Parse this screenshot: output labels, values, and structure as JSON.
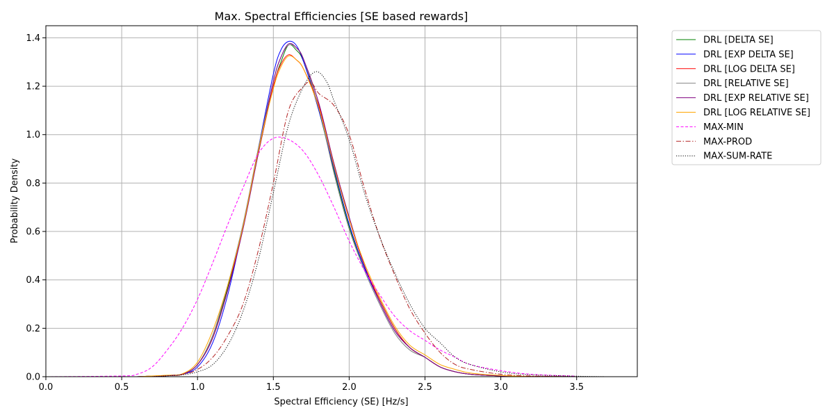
{
  "chart_data": {
    "type": "line",
    "title": "Max. Spectral Efficiencies [SE based rewards]",
    "xlabel": "Spectral Efficiency (SE) [Hz/s]",
    "ylabel": "Probability Density",
    "xlim": [
      0.0,
      3.9
    ],
    "ylim": [
      0.0,
      1.45
    ],
    "xticks": [
      0.0,
      0.5,
      1.0,
      1.5,
      2.0,
      2.5,
      3.0,
      3.5
    ],
    "xtick_labels": [
      "0.0",
      "0.5",
      "1.0",
      "1.5",
      "2.0",
      "2.5",
      "3.0",
      "3.5"
    ],
    "yticks": [
      0.0,
      0.2,
      0.4,
      0.6,
      0.8,
      1.0,
      1.2,
      1.4
    ],
    "ytick_labels": [
      "0.0",
      "0.2",
      "0.4",
      "0.6",
      "0.8",
      "1.0",
      "1.2",
      "1.4"
    ],
    "grid": true,
    "legend_position": "outside-right-top",
    "series": [
      {
        "name": "DRL [DELTA SE]",
        "color": "#008000",
        "dash": "solid",
        "x": [
          0.6,
          0.8,
          0.9,
          1.0,
          1.1,
          1.2,
          1.3,
          1.4,
          1.5,
          1.55,
          1.6,
          1.65,
          1.7,
          1.8,
          1.9,
          2.0,
          2.1,
          2.2,
          2.3,
          2.4,
          2.5,
          2.6,
          2.7,
          2.8,
          3.0,
          3.2,
          3.5
        ],
        "y": [
          0.0,
          0.005,
          0.01,
          0.05,
          0.17,
          0.37,
          0.62,
          0.92,
          1.2,
          1.3,
          1.37,
          1.35,
          1.3,
          1.1,
          0.85,
          0.62,
          0.45,
          0.32,
          0.2,
          0.12,
          0.08,
          0.04,
          0.02,
          0.01,
          0.003,
          0.001,
          0.0
        ]
      },
      {
        "name": "DRL [EXP DELTA SE]",
        "color": "#0000ff",
        "dash": "solid",
        "x": [
          0.6,
          0.8,
          0.9,
          1.0,
          1.1,
          1.2,
          1.3,
          1.4,
          1.5,
          1.55,
          1.6,
          1.65,
          1.7,
          1.8,
          1.9,
          2.0,
          2.1,
          2.2,
          2.3,
          2.4,
          2.5,
          2.6,
          2.7,
          2.8,
          3.0,
          3.2,
          3.5
        ],
        "y": [
          0.0,
          0.004,
          0.01,
          0.04,
          0.14,
          0.34,
          0.62,
          0.94,
          1.25,
          1.35,
          1.385,
          1.37,
          1.3,
          1.1,
          0.86,
          0.63,
          0.45,
          0.31,
          0.19,
          0.12,
          0.08,
          0.04,
          0.02,
          0.01,
          0.003,
          0.001,
          0.0
        ]
      },
      {
        "name": "DRL [LOG DELTA SE]",
        "color": "#ff0000",
        "dash": "solid",
        "x": [
          0.6,
          0.8,
          0.9,
          1.0,
          1.1,
          1.2,
          1.3,
          1.4,
          1.5,
          1.55,
          1.6,
          1.65,
          1.7,
          1.8,
          1.9,
          2.0,
          2.1,
          2.2,
          2.3,
          2.4,
          2.5,
          2.6,
          2.7,
          2.8,
          3.0,
          3.2,
          3.5
        ],
        "y": [
          0.0,
          0.005,
          0.01,
          0.05,
          0.16,
          0.36,
          0.62,
          0.92,
          1.2,
          1.29,
          1.33,
          1.31,
          1.27,
          1.12,
          0.88,
          0.65,
          0.46,
          0.32,
          0.2,
          0.12,
          0.08,
          0.04,
          0.02,
          0.01,
          0.003,
          0.001,
          0.0
        ]
      },
      {
        "name": "DRL [RELATIVE SE]",
        "color": "#808080",
        "dash": "solid",
        "x": [
          0.6,
          0.8,
          0.9,
          1.0,
          1.1,
          1.2,
          1.3,
          1.4,
          1.5,
          1.55,
          1.6,
          1.65,
          1.7,
          1.8,
          1.9,
          2.0,
          2.1,
          2.2,
          2.3,
          2.4,
          2.5,
          2.6,
          2.7,
          2.8,
          3.0,
          3.2,
          3.5
        ],
        "y": [
          0.0,
          0.005,
          0.01,
          0.05,
          0.17,
          0.38,
          0.63,
          0.94,
          1.22,
          1.32,
          1.37,
          1.36,
          1.31,
          1.11,
          0.84,
          0.61,
          0.44,
          0.3,
          0.18,
          0.11,
          0.08,
          0.04,
          0.02,
          0.01,
          0.003,
          0.001,
          0.0
        ]
      },
      {
        "name": "DRL [EXP RELATIVE SE]",
        "color": "#800080",
        "dash": "solid",
        "x": [
          0.6,
          0.8,
          0.9,
          1.0,
          1.1,
          1.2,
          1.3,
          1.4,
          1.5,
          1.55,
          1.6,
          1.65,
          1.7,
          1.8,
          1.9,
          2.0,
          2.1,
          2.2,
          2.3,
          2.4,
          2.5,
          2.6,
          2.7,
          2.8,
          3.0,
          3.2,
          3.5
        ],
        "y": [
          0.0,
          0.005,
          0.01,
          0.05,
          0.16,
          0.36,
          0.61,
          0.92,
          1.22,
          1.32,
          1.375,
          1.36,
          1.31,
          1.13,
          0.88,
          0.66,
          0.46,
          0.31,
          0.19,
          0.12,
          0.08,
          0.04,
          0.02,
          0.01,
          0.003,
          0.001,
          0.0
        ]
      },
      {
        "name": "DRL [LOG RELATIVE SE]",
        "color": "#ffa500",
        "dash": "solid",
        "x": [
          0.6,
          0.8,
          0.9,
          1.0,
          1.1,
          1.2,
          1.3,
          1.4,
          1.5,
          1.55,
          1.6,
          1.65,
          1.7,
          1.8,
          1.9,
          2.0,
          2.1,
          2.2,
          2.3,
          2.4,
          2.5,
          2.6,
          2.7,
          2.8,
          3.0,
          3.2,
          3.5
        ],
        "y": [
          0.0,
          0.006,
          0.012,
          0.06,
          0.19,
          0.38,
          0.62,
          0.93,
          1.19,
          1.28,
          1.325,
          1.31,
          1.27,
          1.11,
          0.87,
          0.65,
          0.47,
          0.33,
          0.21,
          0.13,
          0.09,
          0.05,
          0.03,
          0.015,
          0.005,
          0.001,
          0.0
        ]
      },
      {
        "name": "MAX-MIN",
        "color": "#ff00ff",
        "dash": "dashed",
        "x": [
          0.0,
          0.5,
          0.6,
          0.7,
          0.8,
          0.9,
          1.0,
          1.1,
          1.2,
          1.3,
          1.4,
          1.5,
          1.6,
          1.7,
          1.8,
          1.9,
          2.0,
          2.1,
          2.2,
          2.3,
          2.4,
          2.5,
          2.6,
          2.7,
          2.8,
          3.0,
          3.2,
          3.5
        ],
        "y": [
          0.0,
          0.003,
          0.01,
          0.04,
          0.11,
          0.2,
          0.32,
          0.47,
          0.63,
          0.78,
          0.92,
          0.985,
          0.98,
          0.93,
          0.83,
          0.7,
          0.56,
          0.44,
          0.34,
          0.25,
          0.19,
          0.15,
          0.11,
          0.08,
          0.05,
          0.025,
          0.01,
          0.002
        ]
      },
      {
        "name": "MAX-PROD",
        "color": "#b22222",
        "dash": "dashdot",
        "x": [
          0.7,
          0.9,
          1.0,
          1.1,
          1.2,
          1.3,
          1.4,
          1.5,
          1.6,
          1.7,
          1.75,
          1.8,
          1.9,
          2.0,
          2.1,
          2.2,
          2.3,
          2.4,
          2.5,
          2.6,
          2.7,
          2.8,
          3.0,
          3.2,
          3.5
        ],
        "y": [
          0.0,
          0.01,
          0.03,
          0.08,
          0.17,
          0.3,
          0.52,
          0.8,
          1.1,
          1.2,
          1.215,
          1.17,
          1.12,
          1.0,
          0.78,
          0.58,
          0.42,
          0.28,
          0.18,
          0.1,
          0.05,
          0.03,
          0.01,
          0.003,
          0.0
        ]
      },
      {
        "name": "MAX-SUM-RATE",
        "color": "#000000",
        "dash": "dotted",
        "x": [
          0.7,
          0.9,
          1.0,
          1.1,
          1.2,
          1.3,
          1.4,
          1.5,
          1.6,
          1.7,
          1.78,
          1.85,
          1.9,
          2.0,
          2.1,
          2.2,
          2.3,
          2.4,
          2.5,
          2.6,
          2.7,
          2.8,
          3.0,
          3.2,
          3.5,
          3.7
        ],
        "y": [
          0.0,
          0.008,
          0.02,
          0.05,
          0.13,
          0.27,
          0.48,
          0.76,
          1.04,
          1.2,
          1.26,
          1.22,
          1.14,
          0.98,
          0.76,
          0.58,
          0.43,
          0.3,
          0.2,
          0.14,
          0.08,
          0.05,
          0.02,
          0.008,
          0.002,
          0.0
        ]
      }
    ]
  }
}
